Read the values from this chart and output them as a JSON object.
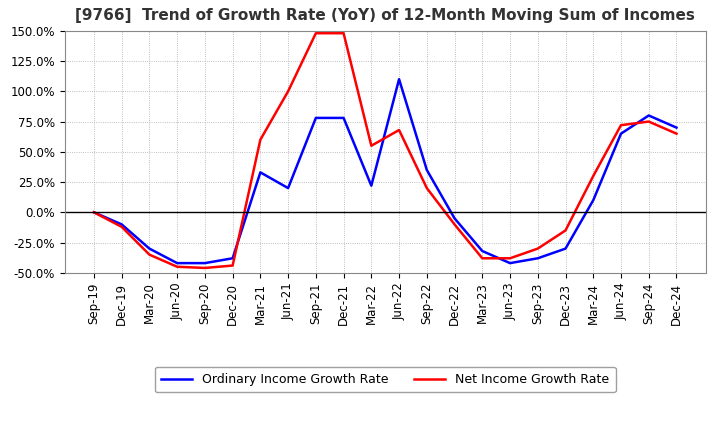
{
  "title": "[9766]  Trend of Growth Rate (YoY) of 12-Month Moving Sum of Incomes",
  "x_labels": [
    "Sep-19",
    "Dec-19",
    "Mar-20",
    "Jun-20",
    "Sep-20",
    "Dec-20",
    "Mar-21",
    "Jun-21",
    "Sep-21",
    "Dec-21",
    "Mar-22",
    "Jun-22",
    "Sep-22",
    "Dec-22",
    "Mar-23",
    "Jun-23",
    "Sep-23",
    "Dec-23",
    "Mar-24",
    "Jun-24",
    "Sep-24",
    "Dec-24"
  ],
  "ordinary_income": [
    0.0,
    -10.0,
    -30.0,
    -42.0,
    -42.0,
    -38.0,
    33.0,
    20.0,
    78.0,
    78.0,
    22.0,
    110.0,
    35.0,
    -5.0,
    -32.0,
    -42.0,
    -38.0,
    -30.0,
    10.0,
    65.0,
    80.0,
    70.0
  ],
  "net_income": [
    0.0,
    -12.0,
    -35.0,
    -45.0,
    -46.0,
    -44.0,
    60.0,
    100.0,
    148.0,
    148.0,
    55.0,
    68.0,
    20.0,
    -10.0,
    -38.0,
    -38.0,
    -30.0,
    -15.0,
    30.0,
    72.0,
    75.0,
    65.0
  ],
  "ordinary_color": "#0000FF",
  "net_color": "#FF0000",
  "ylim": [
    -50,
    150
  ],
  "yticks": [
    -50,
    -25,
    0,
    25,
    50,
    75,
    100,
    125,
    150
  ],
  "background_color": "#FFFFFF",
  "plot_bg_color": "#FFFFFF",
  "grid_color": "#AAAAAA",
  "legend_ordinary": "Ordinary Income Growth Rate",
  "legend_net": "Net Income Growth Rate",
  "title_fontsize": 11,
  "axis_fontsize": 8.5,
  "legend_fontsize": 9,
  "line_width": 1.8
}
